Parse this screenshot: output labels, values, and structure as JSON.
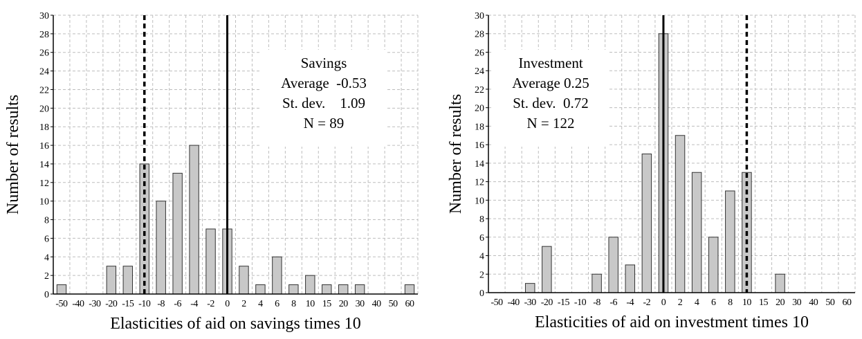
{
  "chart_data": [
    {
      "type": "bar",
      "xlabel": "Elasticities of aid on savings times 10",
      "ylabel": "Number of results",
      "ylim": [
        0,
        30
      ],
      "yticks": [
        "0",
        "2",
        "4",
        "6",
        "8",
        "10",
        "12",
        "14",
        "16",
        "18",
        "20",
        "22",
        "24",
        "26",
        "28",
        "30"
      ],
      "xticks": [
        "-50",
        "-40",
        "-30",
        "-20",
        "-15",
        "-10",
        "-8",
        "-6",
        "-4",
        "-2",
        "0",
        "2",
        "4",
        "6",
        "8",
        "10",
        "15",
        "20",
        "30",
        "40",
        "50",
        "60"
      ],
      "values": [
        1,
        0,
        0,
        3,
        3,
        14,
        10,
        13,
        16,
        7,
        7,
        3,
        1,
        4,
        1,
        2,
        1,
        1,
        1,
        0,
        0,
        1
      ],
      "grid": true,
      "reference_lines": {
        "dashed_tick": "-10",
        "solid_tick": "0"
      },
      "annotation": [
        "Savings",
        "Average  -0.53",
        "St. dev.    1.09",
        "N = 89"
      ],
      "bar_color": "#c8c8c8"
    },
    {
      "type": "bar",
      "xlabel": "Elasticities of aid on investment times 10",
      "ylabel": "Number of results",
      "ylim": [
        0,
        30
      ],
      "yticks": [
        "0",
        "2",
        "4",
        "6",
        "8",
        "10",
        "12",
        "14",
        "16",
        "18",
        "20",
        "22",
        "24",
        "26",
        "28",
        "30"
      ],
      "xticks": [
        "-50",
        "-40",
        "-30",
        "-20",
        "-15",
        "-10",
        "-8",
        "-6",
        "-4",
        "-2",
        "0",
        "2",
        "4",
        "6",
        "8",
        "10",
        "15",
        "20",
        "30",
        "40",
        "50",
        "60"
      ],
      "values": [
        0,
        0,
        1,
        5,
        0,
        0,
        2,
        6,
        3,
        15,
        28,
        17,
        13,
        6,
        11,
        13,
        0,
        2,
        0,
        0,
        0,
        0
      ],
      "grid": true,
      "reference_lines": {
        "solid_tick": "0",
        "dashed_tick": "10"
      },
      "annotation": [
        "Investment",
        "Average 0.25",
        "St. dev.  0.72",
        "N = 122"
      ],
      "bar_color": "#c8c8c8"
    }
  ],
  "colors": {
    "bar_fill": "#c8c8c8",
    "bar_stroke": "#333333",
    "grid": "#bdbdbd",
    "axis": "#000000"
  }
}
